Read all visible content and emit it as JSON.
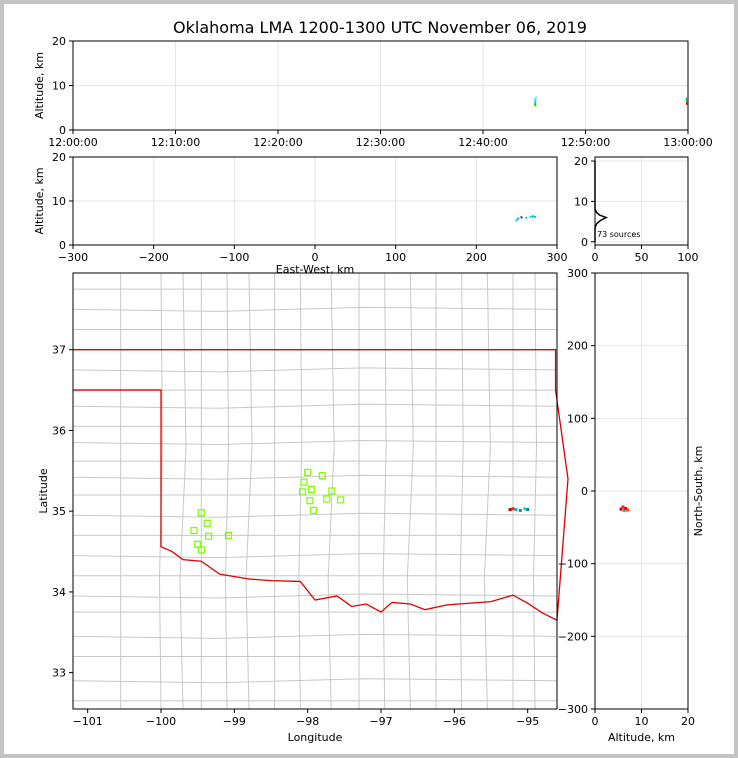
{
  "title": "Oklahoma LMA 1200-1300 UTC November 06, 2019",
  "colors": {
    "state_border": "#e00000",
    "county_lines": "#c8c8c8",
    "station": "#7cfc00",
    "grid": "#e6e6e6"
  },
  "chart_data": [
    {
      "id": "time_altitude",
      "type": "scatter",
      "ylabel": "Altitude, km",
      "xlabel": "",
      "xticks": [
        "12:00:00",
        "12:10:00",
        "12:20:00",
        "12:30:00",
        "12:40:00",
        "12:50:00",
        "13:00:00"
      ],
      "xlim_minutes": [
        0,
        60
      ],
      "ylim": [
        0,
        20
      ],
      "yticks": [
        0,
        10,
        20
      ],
      "points": [
        {
          "t": 45.1,
          "z": 5.6,
          "c": "#00c000"
        },
        {
          "t": 45.1,
          "z": 6.0,
          "c": "#00bfff"
        },
        {
          "t": 45.1,
          "z": 6.4,
          "c": "#00e0e0"
        },
        {
          "t": 45.1,
          "z": 6.9,
          "c": "#40d0ff"
        },
        {
          "t": 45.2,
          "z": 7.3,
          "c": "#80e0ff"
        },
        {
          "t": 45.1,
          "z": 5.2,
          "c": "#ffff00"
        },
        {
          "t": 59.9,
          "z": 5.9,
          "c": "#d00000"
        },
        {
          "t": 59.9,
          "z": 6.3,
          "c": "#ff4000"
        },
        {
          "t": 59.9,
          "z": 6.7,
          "c": "#00c000"
        },
        {
          "t": 59.9,
          "z": 7.1,
          "c": "#00a0ff"
        }
      ]
    },
    {
      "id": "ew_altitude",
      "type": "scatter",
      "ylabel": "Altitude, km",
      "xlabel": "East-West, km",
      "xlim": [
        -300,
        300
      ],
      "xticks": [
        -300,
        -200,
        -100,
        0,
        100,
        200,
        300
      ],
      "ylim": [
        0,
        20
      ],
      "yticks": [
        0,
        10,
        20
      ],
      "points": [
        {
          "x": 250,
          "z": 5.6,
          "c": "#00c0c0"
        },
        {
          "x": 252,
          "z": 6.0,
          "c": "#00a0ff"
        },
        {
          "x": 256,
          "z": 6.3,
          "c": "#004060"
        },
        {
          "x": 262,
          "z": 6.2,
          "c": "#00c0c0"
        },
        {
          "x": 267,
          "z": 6.4,
          "c": "#00e0e0"
        },
        {
          "x": 270,
          "z": 6.5,
          "c": "#0080ff"
        },
        {
          "x": 273,
          "z": 6.4,
          "c": "#00c0c0"
        }
      ]
    },
    {
      "id": "altitude_histogram",
      "type": "line",
      "xlim": [
        0,
        100
      ],
      "xticks": [
        0,
        50,
        100
      ],
      "ylim": [
        0,
        20
      ],
      "yticks": [
        0,
        10,
        20
      ],
      "annotation": "73 sources",
      "profile": [
        {
          "count": 0,
          "z": 0
        },
        {
          "count": 0,
          "z": 3.5
        },
        {
          "count": 2,
          "z": 4.5
        },
        {
          "count": 6,
          "z": 5.3
        },
        {
          "count": 12,
          "z": 6.0
        },
        {
          "count": 5,
          "z": 6.6
        },
        {
          "count": 2,
          "z": 7.2
        },
        {
          "count": 0,
          "z": 8.0
        },
        {
          "count": 0,
          "z": 20
        }
      ]
    },
    {
      "id": "plan_view",
      "type": "map",
      "xlabel": "Longitude",
      "ylabel": "Latitude",
      "xlim": [
        -101.2,
        -94.6
      ],
      "ylim": [
        32.55,
        37.95
      ],
      "xticks": [
        -101,
        -100,
        -99,
        -98,
        -97,
        -96,
        -95
      ],
      "yticks": [
        33,
        34,
        35,
        36,
        37
      ],
      "stations": [
        {
          "lon": -98.0,
          "lat": 35.48
        },
        {
          "lon": -97.8,
          "lat": 35.44
        },
        {
          "lon": -98.05,
          "lat": 35.36
        },
        {
          "lon": -98.07,
          "lat": 35.24
        },
        {
          "lon": -97.95,
          "lat": 35.27
        },
        {
          "lon": -97.67,
          "lat": 35.25
        },
        {
          "lon": -97.97,
          "lat": 35.13
        },
        {
          "lon": -97.74,
          "lat": 35.15
        },
        {
          "lon": -97.55,
          "lat": 35.14
        },
        {
          "lon": -97.92,
          "lat": 35.01
        },
        {
          "lon": -99.45,
          "lat": 34.98
        },
        {
          "lon": -99.37,
          "lat": 34.85
        },
        {
          "lon": -99.55,
          "lat": 34.76
        },
        {
          "lon": -99.35,
          "lat": 34.69
        },
        {
          "lon": -99.08,
          "lat": 34.7
        },
        {
          "lon": -99.5,
          "lat": 34.59
        },
        {
          "lon": -99.45,
          "lat": 34.52
        }
      ],
      "sources": [
        {
          "lon": -95.24,
          "lat": 35.02,
          "c": "#d00000"
        },
        {
          "lon": -95.2,
          "lat": 35.03,
          "c": "#ff2000"
        },
        {
          "lon": -95.16,
          "lat": 35.02,
          "c": "#00c0c0"
        },
        {
          "lon": -95.1,
          "lat": 35.01,
          "c": "#0080ff"
        },
        {
          "lon": -95.04,
          "lat": 35.03,
          "c": "#00e0e0"
        },
        {
          "lon": -95.0,
          "lat": 35.02,
          "c": "#008080"
        }
      ]
    },
    {
      "id": "ns_altitude",
      "type": "scatter",
      "xlabel": "Altitude, km",
      "ylabel": "North-South, km",
      "xlim": [
        0,
        20
      ],
      "xticks": [
        0,
        10,
        20
      ],
      "ylim": [
        -300,
        300
      ],
      "yticks": [
        -300,
        -200,
        -100,
        0,
        100,
        200,
        300
      ],
      "points": [
        {
          "z": 5.6,
          "y": -25,
          "c": "#d00000"
        },
        {
          "z": 6.0,
          "y": -22,
          "c": "#ff2000"
        },
        {
          "z": 6.3,
          "y": -27,
          "c": "#00c0c0"
        },
        {
          "z": 6.6,
          "y": -24,
          "c": "#d00000"
        },
        {
          "z": 7.0,
          "y": -26,
          "c": "#ff4000"
        }
      ]
    }
  ]
}
